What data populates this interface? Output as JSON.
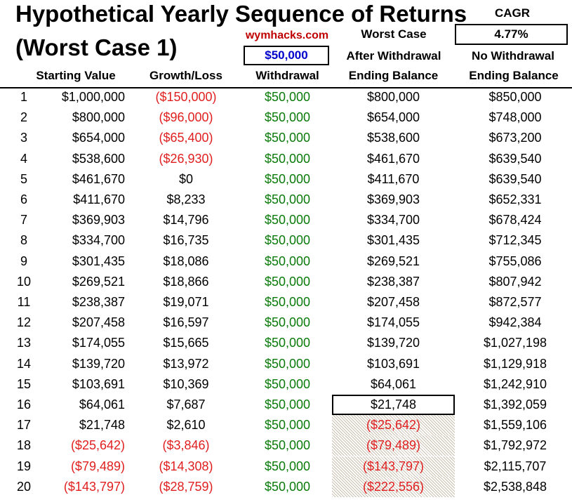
{
  "title_line1": "Hypothetical Yearly Sequence of Returns",
  "title_line2": "(Worst Case 1)",
  "brand": "wymhacks.com",
  "withdrawal_amount": "$50,000",
  "labels": {
    "worst_case": "Worst Case",
    "after_withdrawal": "After Withdrawal",
    "cagr": "CAGR",
    "no_withdrawal": "No Withdrawal"
  },
  "cagr_value": "4.77%",
  "headers": {
    "starting_value": "Starting Value",
    "growth_loss": "Growth/Loss",
    "withdrawal": "Withdrawal",
    "ending_balance_after": "Ending Balance",
    "ending_balance_no": "Ending Balance"
  },
  "rows": [
    {
      "year": "1",
      "start": "$1,000,000",
      "growth": "($150,000)",
      "withdrawal": "$50,000",
      "end_after": "$800,000",
      "end_no": "$850,000"
    },
    {
      "year": "2",
      "start": "$800,000",
      "growth": "($96,000)",
      "withdrawal": "$50,000",
      "end_after": "$654,000",
      "end_no": "$748,000"
    },
    {
      "year": "3",
      "start": "$654,000",
      "growth": "($65,400)",
      "withdrawal": "$50,000",
      "end_after": "$538,600",
      "end_no": "$673,200"
    },
    {
      "year": "4",
      "start": "$538,600",
      "growth": "($26,930)",
      "withdrawal": "$50,000",
      "end_after": "$461,670",
      "end_no": "$639,540"
    },
    {
      "year": "5",
      "start": "$461,670",
      "growth": "$0",
      "withdrawal": "$50,000",
      "end_after": "$411,670",
      "end_no": "$639,540"
    },
    {
      "year": "6",
      "start": "$411,670",
      "growth": "$8,233",
      "withdrawal": "$50,000",
      "end_after": "$369,903",
      "end_no": "$652,331"
    },
    {
      "year": "7",
      "start": "$369,903",
      "growth": "$14,796",
      "withdrawal": "$50,000",
      "end_after": "$334,700",
      "end_no": "$678,424"
    },
    {
      "year": "8",
      "start": "$334,700",
      "growth": "$16,735",
      "withdrawal": "$50,000",
      "end_after": "$301,435",
      "end_no": "$712,345"
    },
    {
      "year": "9",
      "start": "$301,435",
      "growth": "$18,086",
      "withdrawal": "$50,000",
      "end_after": "$269,521",
      "end_no": "$755,086"
    },
    {
      "year": "10",
      "start": "$269,521",
      "growth": "$18,866",
      "withdrawal": "$50,000",
      "end_after": "$238,387",
      "end_no": "$807,942"
    },
    {
      "year": "11",
      "start": "$238,387",
      "growth": "$19,071",
      "withdrawal": "$50,000",
      "end_after": "$207,458",
      "end_no": "$872,577"
    },
    {
      "year": "12",
      "start": "$207,458",
      "growth": "$16,597",
      "withdrawal": "$50,000",
      "end_after": "$174,055",
      "end_no": "$942,384"
    },
    {
      "year": "13",
      "start": "$174,055",
      "growth": "$15,665",
      "withdrawal": "$50,000",
      "end_after": "$139,720",
      "end_no": "$1,027,198"
    },
    {
      "year": "14",
      "start": "$139,720",
      "growth": "$13,972",
      "withdrawal": "$50,000",
      "end_after": "$103,691",
      "end_no": "$1,129,918"
    },
    {
      "year": "15",
      "start": "$103,691",
      "growth": "$10,369",
      "withdrawal": "$50,000",
      "end_after": "$64,061",
      "end_no": "$1,242,910"
    },
    {
      "year": "16",
      "start": "$64,061",
      "growth": "$7,687",
      "withdrawal": "$50,000",
      "end_after": "$21,748",
      "end_no": "$1,392,059"
    },
    {
      "year": "17",
      "start": "$21,748",
      "growth": "$2,610",
      "withdrawal": "$50,000",
      "end_after": "($25,642)",
      "end_no": "$1,559,106"
    },
    {
      "year": "18",
      "start": "($25,642)",
      "growth": "($3,846)",
      "withdrawal": "$50,000",
      "end_after": "($79,489)",
      "end_no": "$1,792,972"
    },
    {
      "year": "19",
      "start": "($79,489)",
      "growth": "($14,308)",
      "withdrawal": "$50,000",
      "end_after": "($143,797)",
      "end_no": "$2,115,707"
    },
    {
      "year": "20",
      "start": "($143,797)",
      "growth": "($28,759)",
      "withdrawal": "$50,000",
      "end_after": "($222,556)",
      "end_no": "$2,538,848"
    }
  ],
  "colors": {
    "negative": "#e02020",
    "withdrawal": "#0a7a0a",
    "withdrawal_input": "#0000cc",
    "brand": "#c00000"
  }
}
